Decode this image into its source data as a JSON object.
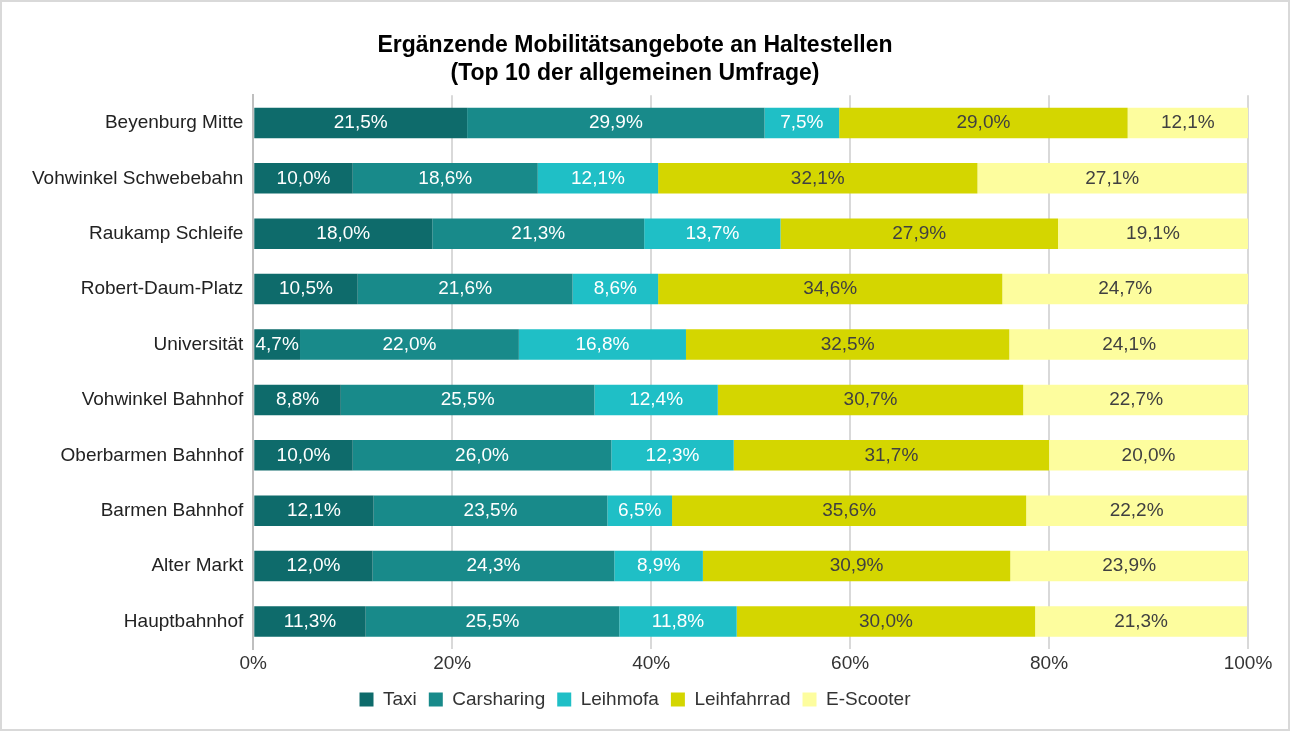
{
  "chart_data": {
    "type": "bar",
    "orientation": "horizontal",
    "stacked": true,
    "title": "Ergänzende Mobilitätsangebote an Haltestellen\n(Top 10 der allgemeinen Umfrage)",
    "categories": [
      "Beyenburg Mitte",
      "Vohwinkel Schwebebahn",
      "Raukamp Schleife",
      "Robert-Daum-Platz",
      "Universität",
      "Vohwinkel Bahnhof",
      "Oberbarmen Bahnhof",
      "Barmen Bahnhof",
      "Alter Markt",
      "Hauptbahnhof"
    ],
    "series": [
      {
        "name": "Taxi",
        "color": "#0e6b6b",
        "values": [
          21.5,
          10.0,
          18.0,
          10.5,
          4.7,
          8.8,
          10.0,
          12.1,
          12.0,
          11.3
        ],
        "value_labels": [
          "21,5%",
          "10,0%",
          "18,0%",
          "10,5%",
          "4,7%",
          "8,8%",
          "10,0%",
          "12,1%",
          "12,0%",
          "11,3%"
        ]
      },
      {
        "name": "Carsharing",
        "color": "#188a8a",
        "values": [
          29.9,
          18.6,
          21.3,
          21.6,
          22.0,
          25.5,
          26.0,
          23.5,
          24.3,
          25.5
        ],
        "value_labels": [
          "29,9%",
          "18,6%",
          "21,3%",
          "21,6%",
          "22,0%",
          "25,5%",
          "26,0%",
          "23,5%",
          "24,3%",
          "25,5%"
        ]
      },
      {
        "name": "Leihmofa",
        "color": "#1fbfc6",
        "values": [
          7.5,
          12.1,
          13.7,
          8.6,
          16.8,
          12.4,
          12.3,
          6.5,
          8.9,
          11.8
        ],
        "value_labels": [
          "7,5%",
          "12,1%",
          "13,7%",
          "8,6%",
          "16,8%",
          "12,4%",
          "12,3%",
          "6,5%",
          "8,9%",
          "11,8%"
        ]
      },
      {
        "name": "Leihfahrrad",
        "color": "#d4d600",
        "values": [
          29.0,
          32.1,
          27.9,
          34.6,
          32.5,
          30.7,
          31.7,
          35.6,
          30.9,
          30.0
        ],
        "value_labels": [
          "29,0%",
          "32,1%",
          "27,9%",
          "34,6%",
          "32,5%",
          "30,7%",
          "31,7%",
          "35,6%",
          "30,9%",
          "30,0%"
        ]
      },
      {
        "name": "E-Scooter",
        "color": "#fdfd9e",
        "values": [
          12.1,
          27.1,
          19.1,
          24.7,
          24.1,
          22.7,
          20.0,
          22.2,
          23.9,
          21.3
        ],
        "value_labels": [
          "12,1%",
          "27,1%",
          "19,1%",
          "24,7%",
          "24,1%",
          "22,7%",
          "20,0%",
          "22,2%",
          "23,9%",
          "21,3%"
        ]
      }
    ],
    "xlim": [
      0,
      100
    ],
    "xticks": [
      {
        "value": 0,
        "label": "0%"
      },
      {
        "value": 20,
        "label": "20%"
      },
      {
        "value": 40,
        "label": "40%"
      },
      {
        "value": 60,
        "label": "60%"
      },
      {
        "value": 80,
        "label": "80%"
      },
      {
        "value": 100,
        "label": "100%"
      }
    ],
    "grid": "x",
    "legend": "bottom"
  }
}
